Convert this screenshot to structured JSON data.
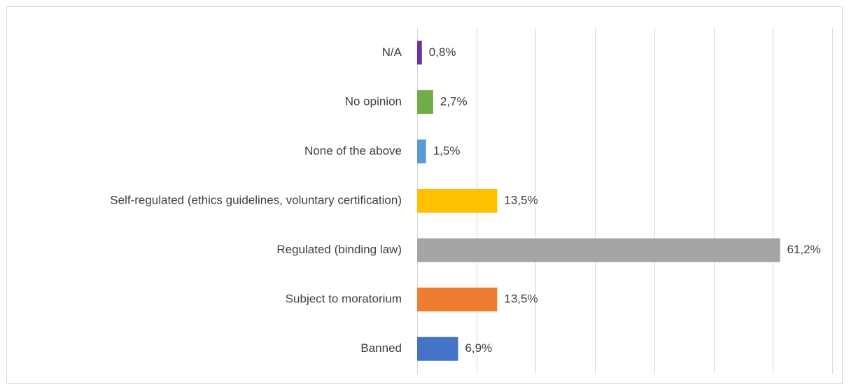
{
  "chart_data": {
    "type": "barh",
    "categories": [
      "N/A",
      "No opinion",
      "None of the above",
      "Self-regulated (ethics guidelines, voluntary certification)",
      "Regulated (binding law)",
      "Subject to moratorium",
      "Banned"
    ],
    "values": [
      0.8,
      2.7,
      1.5,
      13.5,
      61.2,
      13.5,
      6.9
    ],
    "value_labels": [
      "0,8%",
      "2,7%",
      "1,5%",
      "13,5%",
      "61,2%",
      "13,5%",
      "6,9%"
    ],
    "colors": [
      "#7030a0",
      "#70ad47",
      "#5b9bd5",
      "#ffc000",
      "#a5a5a5",
      "#ed7d31",
      "#4472c4"
    ],
    "xlim": [
      0,
      70
    ],
    "xticks": [
      0,
      10,
      20,
      30,
      40,
      50,
      60,
      70
    ],
    "grid": true
  }
}
